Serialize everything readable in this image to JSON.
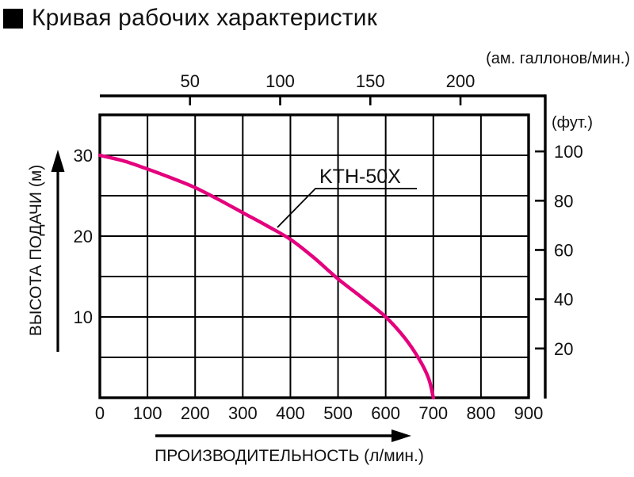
{
  "title": "Кривая рабочих характеристик",
  "chart_data": {
    "type": "line",
    "title": "Кривая рабочих характеристик",
    "series": [
      {
        "name": "KTH-50X",
        "color": "#e4007d",
        "points": [
          [
            0,
            30
          ],
          [
            50,
            29.3
          ],
          [
            100,
            28.3
          ],
          [
            150,
            27.2
          ],
          [
            200,
            26
          ],
          [
            250,
            24.5
          ],
          [
            300,
            22.9
          ],
          [
            350,
            21.3
          ],
          [
            400,
            19.6
          ],
          [
            450,
            17.3
          ],
          [
            500,
            14.7
          ],
          [
            550,
            12.4
          ],
          [
            600,
            10
          ],
          [
            640,
            7.4
          ],
          [
            670,
            4.8
          ],
          [
            690,
            2.4
          ],
          [
            700,
            0
          ]
        ]
      }
    ],
    "x_axis_bottom": {
      "label": "ПРОИЗВОДИТЕЛЬНОСТЬ (л/мин.)",
      "ticks": [
        0,
        100,
        200,
        300,
        400,
        500,
        600,
        700,
        800,
        900
      ],
      "range": [
        0,
        900
      ]
    },
    "x_axis_top": {
      "unit_label": "(ам. галлонов/мин.)",
      "ticks": [
        50,
        100,
        150,
        200
      ],
      "liters_per_gallon": 3.785
    },
    "y_axis_left": {
      "label": "ВЫСОТА ПОДАЧИ (м)",
      "ticks": [
        10,
        20,
        30
      ],
      "range": [
        0,
        35
      ],
      "grid_step": 5
    },
    "y_axis_right": {
      "unit_label": "(фут.)",
      "ticks": [
        20,
        40,
        60,
        80,
        100
      ],
      "meters_per_foot": 0.3048
    },
    "grid": true,
    "legend_position": "inline-callout",
    "colors": {
      "curve": "#e4007d",
      "axis": "#000000",
      "text": "#111111"
    }
  }
}
